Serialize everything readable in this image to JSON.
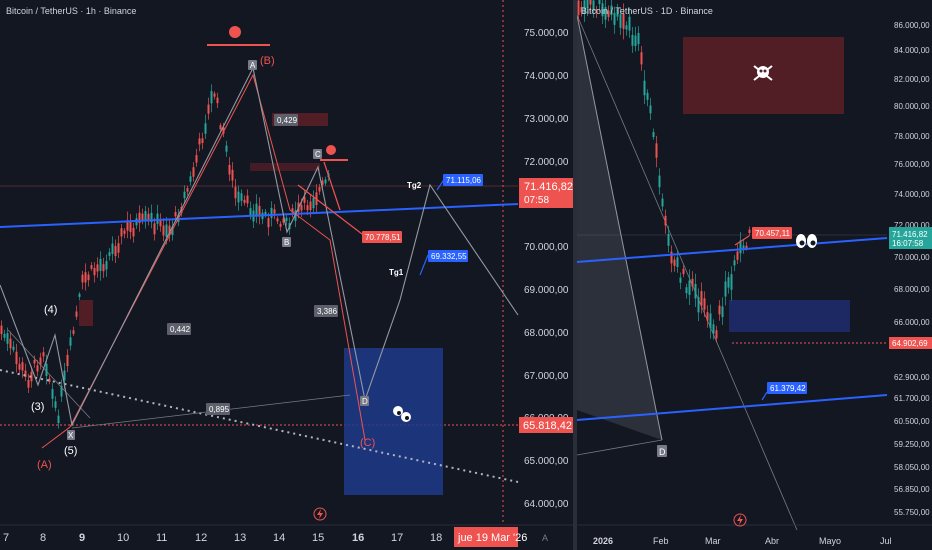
{
  "left": {
    "title": "Bitcoin / TetherUS · 1h · Binance",
    "price_ticks": [
      "75.000,00",
      "74.000,00",
      "73.000,00",
      "72.000,00",
      "70.000,00",
      "69.000,00",
      "68.000,00",
      "67.000,00",
      "66.000,00",
      "65.000,00",
      "64.000,00"
    ],
    "time_ticks": [
      "7",
      "8",
      "9",
      "10",
      "11",
      "12",
      "13",
      "14",
      "15",
      "16",
      "17",
      "18"
    ],
    "current_price": "71.416,82",
    "countdown": "07:58",
    "level_price": "65.818,42",
    "date_badge": "jue 19 Mar '26",
    "axis_icon": "A",
    "wave_labels": {
      "w4": "(4)",
      "w3": "(3)",
      "w5": "(5)",
      "wA": "(A)",
      "wB": "(B)",
      "wC": "(C)",
      "X": "X",
      "A": "A",
      "B": "B",
      "C": "C",
      "D": "D"
    },
    "ratios": [
      "0,429",
      "0,442",
      "0,895",
      "3,386"
    ],
    "targets": {
      "tg1_label": "Tg1",
      "tg1_value": "69.332,55",
      "tg2_label": "Tg2",
      "tg2_value": "71.115,06",
      "target3": "70.778,51"
    },
    "colors": {
      "bull": "#26a69a",
      "bear": "#ef5350",
      "trend": "#2962ff",
      "zone": "#1e3a8a"
    }
  },
  "right": {
    "title": "Bitcoin / TetherUS · 1D · Binance",
    "price_ticks": [
      "86.000,00",
      "84.000,00",
      "82.000,00",
      "80.000,00",
      "78.000,00",
      "76.000,00",
      "74.000,00",
      "72.000,00",
      "70.000,00",
      "68.000,00",
      "66.000,00",
      "62.900,00",
      "61.700,00",
      "60.500,00",
      "59.250,00",
      "58.050,00",
      "56.850,00",
      "55.750,00"
    ],
    "time_ticks": [
      "2026",
      "Feb",
      "Mar",
      "Abr",
      "Mayo",
      "Jul"
    ],
    "current_price": "71.416,82",
    "countdown": "16:07:58",
    "level_price": "64.902,69",
    "target_a": "70.457,11",
    "target_b": "61.379,42",
    "wave_label": "D",
    "skull_icon": "skull-crossbones-icon",
    "eyes_icon": "eyes-icon",
    "colors": {
      "resistance_zone": "#5a1f26",
      "support_zone": "#1e2a66"
    }
  }
}
